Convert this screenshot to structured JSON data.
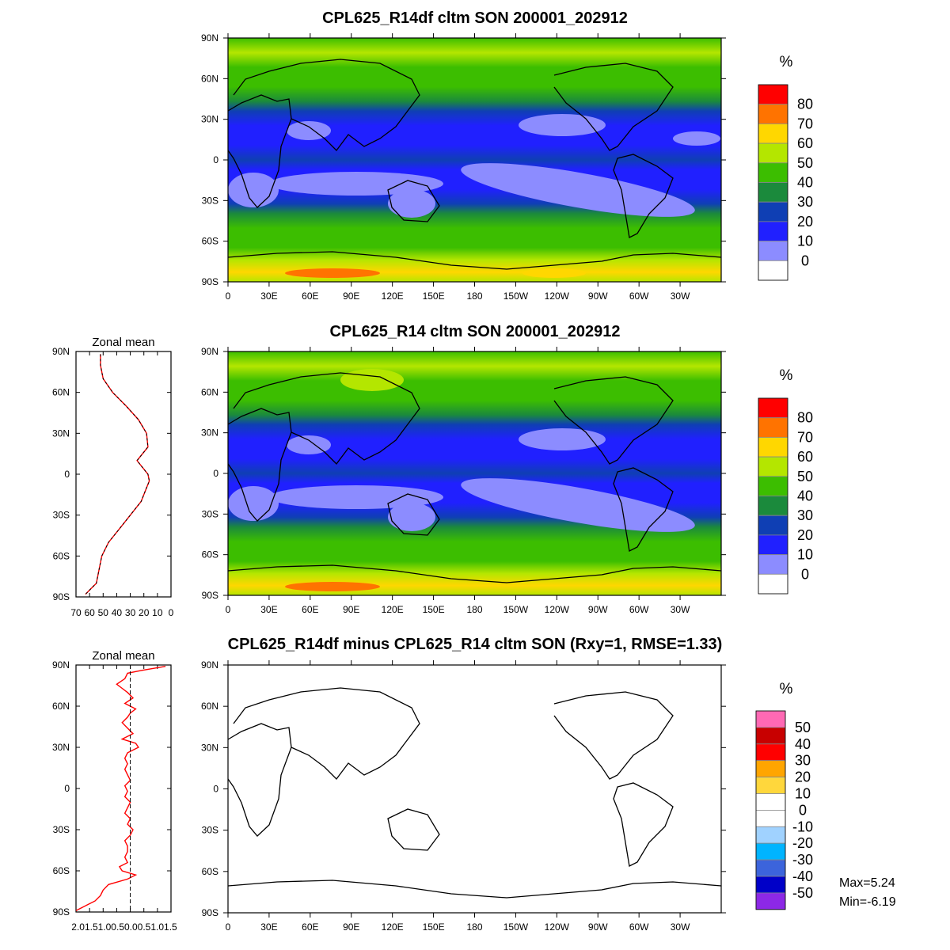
{
  "chart_data": [
    {
      "type": "heatmap",
      "panel": "top",
      "title": "CPL625_R14df cltm SON 200001_202912",
      "units": "%",
      "lon_labels": [
        "0",
        "30E",
        "60E",
        "90E",
        "120E",
        "150E",
        "180",
        "150W",
        "120W",
        "90W",
        "60W",
        "30W"
      ],
      "lat_labels": [
        "90N",
        "60N",
        "30N",
        "0",
        "30S",
        "60S",
        "90S"
      ],
      "colorbar": {
        "labels": [
          "80",
          "70",
          "60",
          "50",
          "40",
          "30",
          "20",
          "10",
          "0"
        ],
        "colors": [
          "#ff0000",
          "#ff7300",
          "#ffd700",
          "#b4e600",
          "#3cbe00",
          "#1b8a3c",
          "#0f3fb4",
          "#2020ff",
          "#8c8cff",
          "#ffffff"
        ]
      },
      "zones": [
        {
          "lat_from": 90,
          "lat_to": 70,
          "value_range": "40-60"
        },
        {
          "lat_from": 70,
          "lat_to": 40,
          "value_range": "40-50"
        },
        {
          "lat_from": 40,
          "lat_to": 15,
          "value_range": "10-30"
        },
        {
          "lat_from": 15,
          "lat_to": -5,
          "value_range": "10-20"
        },
        {
          "lat_from": -5,
          "lat_to": -35,
          "value_range": "0-20"
        },
        {
          "lat_from": -35,
          "lat_to": -70,
          "value_range": "40-50"
        },
        {
          "lat_from": -70,
          "lat_to": -90,
          "value_range": "50-80"
        }
      ]
    },
    {
      "type": "line",
      "panel": "middle-left",
      "title": "Zonal mean",
      "x_labels": [
        "70",
        "60",
        "50",
        "40",
        "30",
        "20",
        "10",
        "0"
      ],
      "y_labels": [
        "90N",
        "60N",
        "30N",
        "0",
        "30S",
        "60S",
        "90S"
      ],
      "xlim": [
        70,
        0
      ],
      "ylim": [
        -90,
        90
      ],
      "series": [
        {
          "color": "#ff0000",
          "lat": [
            88,
            80,
            70,
            60,
            50,
            40,
            30,
            20,
            10,
            5,
            0,
            -5,
            -10,
            -20,
            -30,
            -40,
            -50,
            -60,
            -70,
            -80,
            -85,
            -88
          ],
          "values": [
            52,
            52,
            50,
            43,
            33,
            24,
            18,
            17,
            25,
            21,
            17,
            16,
            18,
            22,
            30,
            38,
            46,
            51,
            53,
            55,
            60,
            63
          ]
        },
        {
          "color": "#000000",
          "lat": [
            88,
            80,
            70,
            60,
            50,
            40,
            30,
            20,
            10,
            5,
            0,
            -5,
            -10,
            -20,
            -30,
            -40,
            -50,
            -60,
            -70,
            -80,
            -85,
            -88
          ],
          "values": [
            52,
            52,
            50,
            43,
            33,
            24,
            18,
            17,
            25,
            21,
            17,
            16,
            18,
            22,
            30,
            38,
            46,
            51,
            53,
            55,
            60,
            63
          ]
        }
      ]
    },
    {
      "type": "heatmap",
      "panel": "middle",
      "title": "CPL625_R14 cltm SON 200001_202912",
      "units": "%",
      "lon_labels": [
        "0",
        "30E",
        "60E",
        "90E",
        "120E",
        "150E",
        "180",
        "150W",
        "120W",
        "90W",
        "60W",
        "30W"
      ],
      "lat_labels": [
        "90N",
        "60N",
        "30N",
        "0",
        "30S",
        "60S",
        "90S"
      ],
      "colorbar": {
        "labels": [
          "80",
          "70",
          "60",
          "50",
          "40",
          "30",
          "20",
          "10",
          "0"
        ],
        "colors": [
          "#ff0000",
          "#ff7300",
          "#ffd700",
          "#b4e600",
          "#3cbe00",
          "#1b8a3c",
          "#0f3fb4",
          "#2020ff",
          "#8c8cff",
          "#ffffff"
        ]
      },
      "zones": [
        {
          "lat_from": 90,
          "lat_to": 70,
          "value_range": "40-60"
        },
        {
          "lat_from": 70,
          "lat_to": 40,
          "value_range": "40-50"
        },
        {
          "lat_from": 40,
          "lat_to": 15,
          "value_range": "10-30"
        },
        {
          "lat_from": 15,
          "lat_to": -5,
          "value_range": "10-20"
        },
        {
          "lat_from": -5,
          "lat_to": -35,
          "value_range": "0-20"
        },
        {
          "lat_from": -35,
          "lat_to": -70,
          "value_range": "40-50"
        },
        {
          "lat_from": -70,
          "lat_to": -90,
          "value_range": "50-80"
        }
      ]
    },
    {
      "type": "line",
      "panel": "bottom-left",
      "title": "Zonal mean",
      "x_labels": [
        "2.0",
        "1.5",
        "1.0",
        "0.5",
        "0.0",
        "0.5",
        "1.0",
        "1.5"
      ],
      "x_label_text": "2.01.51.00.50.00.51.01.5",
      "y_labels": [
        "90N",
        "60N",
        "30N",
        "0",
        "30S",
        "60S",
        "90S"
      ],
      "xlim": [
        -2.0,
        1.5
      ],
      "ylim": [
        -90,
        90
      ],
      "zero_line": 0,
      "series": [
        {
          "color": "#ff0000",
          "lat": [
            89,
            86,
            84,
            80,
            76,
            73,
            70,
            66,
            62,
            58,
            55,
            52,
            48,
            44,
            40,
            36,
            33,
            30,
            26,
            22,
            18,
            14,
            10,
            6,
            2,
            -2,
            -6,
            -10,
            -14,
            -18,
            -22,
            -26,
            -30,
            -34,
            -38,
            -42,
            -46,
            -50,
            -54,
            -57,
            -60,
            -63,
            -66,
            -70,
            -74,
            -78,
            -82,
            -85,
            -87,
            -89
          ],
          "values": [
            1.3,
            0.4,
            -0.1,
            -0.2,
            -0.5,
            -0.3,
            -0.1,
            0.1,
            -0.2,
            0.2,
            0.0,
            -0.1,
            -0.3,
            -0.1,
            0.1,
            -0.3,
            0.2,
            0.3,
            -0.1,
            -0.2,
            -0.1,
            -0.2,
            -0.1,
            0.0,
            -0.2,
            -0.1,
            -0.2,
            0.0,
            -0.1,
            -0.2,
            0.0,
            -0.1,
            0.1,
            0.0,
            -0.2,
            -0.1,
            -0.1,
            -0.2,
            -0.1,
            -0.4,
            -0.3,
            0.2,
            -0.1,
            -0.8,
            -1.0,
            -1.1,
            -1.3,
            -1.6,
            -1.8,
            -2.0
          ]
        },
        {
          "color": "#000000",
          "dashed": true,
          "lat": [
            90,
            -90
          ],
          "values": [
            0,
            0
          ]
        }
      ]
    },
    {
      "type": "heatmap",
      "panel": "bottom",
      "title": "CPL625_R14df minus CPL625_R14 cltm SON (Rxy=1, RMSE=1.33)",
      "units": "%",
      "lon_labels": [
        "0",
        "30E",
        "60E",
        "90E",
        "120E",
        "150E",
        "180",
        "150W",
        "120W",
        "90W",
        "60W",
        "30W"
      ],
      "lat_labels": [
        "90N",
        "60N",
        "30N",
        "0",
        "30S",
        "60S",
        "90S"
      ],
      "colorbar": {
        "labels": [
          "50",
          "40",
          "30",
          "20",
          "10",
          "0",
          "-10",
          "-20",
          "-30",
          "-40",
          "-50"
        ],
        "colors": [
          "#ff69b4",
          "#c80000",
          "#ff0000",
          "#ffa500",
          "#ffd73c",
          "#ffffff",
          "#ffffff",
          "#a0d2ff",
          "#00b4ff",
          "#3c64dc",
          "#0000c8",
          "#8c28e6"
        ]
      },
      "stats": {
        "max": "Max=5.24",
        "min": "Min=-6.19"
      }
    }
  ]
}
